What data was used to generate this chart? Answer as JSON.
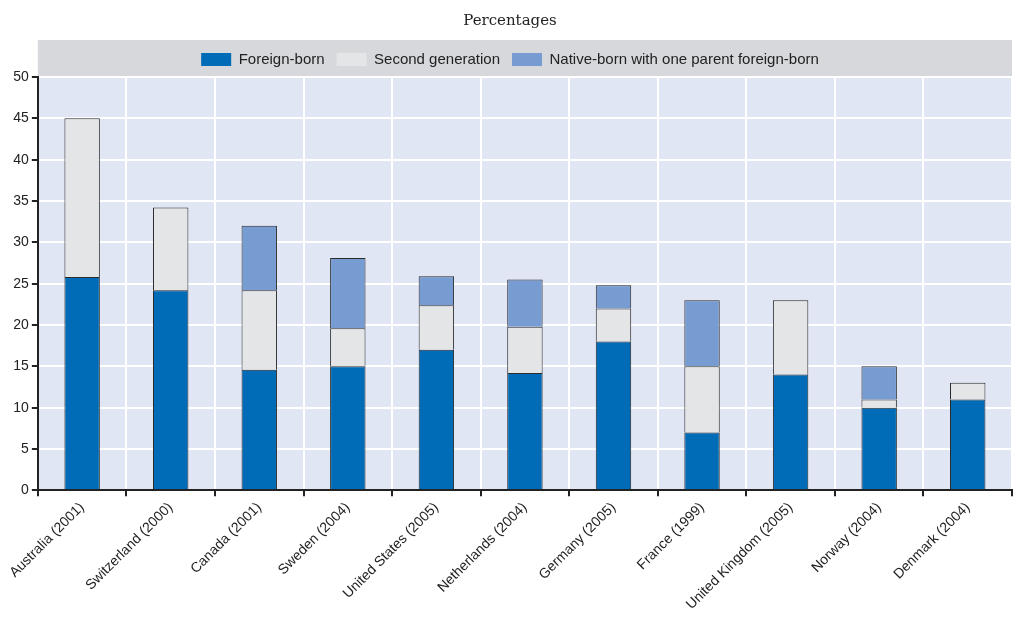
{
  "chart_data": {
    "type": "bar",
    "subtitle": "Percentages",
    "stacked": true,
    "categories": [
      "Australia (2001)",
      "Switzerland (2000)",
      "Canada (2001)",
      "Sweden (2004)",
      "United States (2005)",
      "Netherlands (2004)",
      "Germany (2005)",
      "France (1999)",
      "United Kingdom (2005)",
      "Norway (2004)",
      "Denmark (2004)"
    ],
    "series": [
      {
        "name": "Foreign-born",
        "color": "#006bb6",
        "values": [
          25.8,
          24.2,
          14.6,
          15,
          17,
          14.2,
          18,
          7,
          14,
          10,
          11
        ]
      },
      {
        "name": "Second generation",
        "color": "#e4e5e7",
        "values": [
          19.2,
          10,
          9.6,
          4.6,
          5.4,
          5.6,
          4,
          8,
          9,
          1,
          2
        ]
      },
      {
        "name": "Native-born with one parent foreign-born",
        "color": "#769cd2",
        "values": [
          null,
          null,
          7.8,
          8.5,
          3.5,
          5.7,
          2.8,
          8,
          null,
          4,
          null
        ]
      }
    ],
    "ylim": [
      0,
      50
    ],
    "yticks": [
      0,
      5,
      10,
      15,
      20,
      25,
      30,
      35,
      40,
      45,
      50
    ],
    "grid": true,
    "legend": "top"
  }
}
